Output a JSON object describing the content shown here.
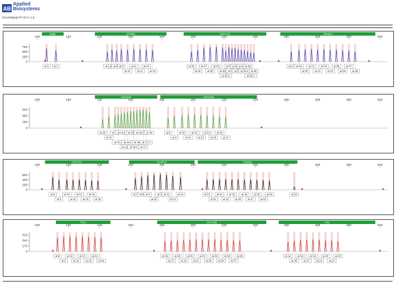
{
  "header": {
    "brand_line1": "Applied",
    "brand_line2": "Biosystems",
    "software": "GeneMapper® ID-X 1.5"
  },
  "colors": {
    "blue": "#3a44c2",
    "green": "#3cae3c",
    "black": "#222222",
    "red": "#d23a3a",
    "bin_bar": "#1f9e3a",
    "bin_stripe": "#f4c8c8",
    "marker_red": "#d22020"
  },
  "chart_data": [
    {
      "type": "line",
      "panel": "blue",
      "x_ticks": [
        100,
        120,
        140,
        160,
        180,
        200,
        220,
        240,
        260,
        280,
        300,
        320
      ],
      "y_ticks": [
        0,
        250,
        500,
        750
      ],
      "xlim": [
        95,
        325
      ],
      "ylim": [
        0,
        900
      ],
      "markers": [
        {
          "name": "AMEL",
          "range": [
            103,
            117
          ]
        },
        {
          "name": "D7S820",
          "range": [
            137,
            183
          ]
        },
        {
          "name": "D8S1179",
          "range": [
            194,
            247
          ]
        },
        {
          "name": "D5S818",
          "range": [
            256,
            317
          ]
        }
      ],
      "peaks": [
        {
          "label": "al X",
          "x": 106,
          "h": 680,
          "row": 0
        },
        {
          "label": "al Y",
          "x": 112,
          "h": 560,
          "row": 0
        },
        {
          "label": "al 8",
          "x": 145,
          "h": 500,
          "row": 0
        },
        {
          "label": "al 9",
          "x": 148,
          "h": 620,
          "row": 0
        },
        {
          "label": "al 8.1",
          "x": 151,
          "h": 560,
          "row": 0
        },
        {
          "label": "al 9",
          "x": 154,
          "h": 640,
          "row": 0
        },
        {
          "label": "al 10",
          "x": 158,
          "h": 610,
          "row": 1
        },
        {
          "label": "al 11",
          "x": 162,
          "h": 650,
          "row": 0
        },
        {
          "label": "al 12",
          "x": 166,
          "h": 640,
          "row": 1
        },
        {
          "label": "al 13",
          "x": 170,
          "h": 630,
          "row": 0
        },
        {
          "label": "al 14",
          "x": 174,
          "h": 600,
          "row": 1
        },
        {
          "label": "al 25",
          "x": 199,
          "h": 520,
          "row": 0
        },
        {
          "label": "al 26",
          "x": 203,
          "h": 600,
          "row": 1
        },
        {
          "label": "al 27",
          "x": 207,
          "h": 720,
          "row": 0
        },
        {
          "label": "al 28",
          "x": 211,
          "h": 740,
          "row": 1
        },
        {
          "label": "al 29",
          "x": 215,
          "h": 760,
          "row": 0
        },
        {
          "label": "al 30",
          "x": 219,
          "h": 720,
          "row": 1
        },
        {
          "label": "al 30.2",
          "x": 221,
          "h": 560,
          "row": 2
        },
        {
          "label": "al 31",
          "x": 223,
          "h": 740,
          "row": 0
        },
        {
          "label": "al 31.2",
          "x": 225,
          "h": 680,
          "row": 1
        },
        {
          "label": "al 32",
          "x": 227,
          "h": 700,
          "row": 0
        },
        {
          "label": "al 32.2",
          "x": 229,
          "h": 650,
          "row": 1
        },
        {
          "label": "al 33",
          "x": 231,
          "h": 600,
          "row": 0
        },
        {
          "label": "al 33.2",
          "x": 233,
          "h": 580,
          "row": 1
        },
        {
          "label": "al 34",
          "x": 235,
          "h": 540,
          "row": 0
        },
        {
          "label": "al 34.2",
          "x": 237,
          "h": 480,
          "row": 2
        },
        {
          "label": "al 35",
          "x": 239,
          "h": 460,
          "row": 1
        },
        {
          "label": "al 17",
          "x": 263,
          "h": 520,
          "row": 0
        },
        {
          "label": "al 19",
          "x": 268,
          "h": 600,
          "row": 0
        },
        {
          "label": "al 20",
          "x": 272,
          "h": 620,
          "row": 1
        },
        {
          "label": "al 21",
          "x": 276,
          "h": 640,
          "row": 0
        },
        {
          "label": "al 22",
          "x": 280,
          "h": 620,
          "row": 1
        },
        {
          "label": "al 23",
          "x": 284,
          "h": 640,
          "row": 0
        },
        {
          "label": "al 24",
          "x": 288,
          "h": 600,
          "row": 1
        },
        {
          "label": "al 25",
          "x": 292,
          "h": 620,
          "row": 0
        },
        {
          "label": "al 26",
          "x": 296,
          "h": 580,
          "row": 1
        },
        {
          "label": "al 27",
          "x": 300,
          "h": 560,
          "row": 0
        },
        {
          "label": "al 28",
          "x": 304,
          "h": 520,
          "row": 1
        }
      ],
      "red_markers": [
        105,
        129,
        243,
        255,
        313
      ]
    },
    {
      "type": "line",
      "panel": "green",
      "x_ticks": [
        100,
        120,
        140,
        160,
        180,
        200,
        220,
        240,
        260,
        280,
        300,
        320
      ],
      "y_ticks": [
        0,
        180,
        360,
        540
      ],
      "xlim": [
        95,
        325
      ],
      "ylim": [
        0,
        620
      ],
      "markers": [
        {
          "name": "D16S539",
          "range": [
            137,
            177
          ]
        },
        {
          "name": "D3S1358",
          "range": [
            179,
            241
          ]
        }
      ],
      "peaks": [
        {
          "label": "al 10",
          "x": 142,
          "h": 260,
          "row": 0
        },
        {
          "label": "al 11",
          "x": 146,
          "h": 340,
          "row": 1
        },
        {
          "label": "al 12",
          "x": 150,
          "h": 380,
          "row": 0
        },
        {
          "label": "al 12.2",
          "x": 152,
          "h": 420,
          "row": 2
        },
        {
          "label": "al 13.2",
          "x": 154,
          "h": 440,
          "row": 0
        },
        {
          "label": "al 14",
          "x": 156,
          "h": 460,
          "row": 3
        },
        {
          "label": "al 14.2",
          "x": 158,
          "h": 480,
          "row": 2
        },
        {
          "label": "al 15",
          "x": 160,
          "h": 500,
          "row": 0
        },
        {
          "label": "al 15.2",
          "x": 162,
          "h": 500,
          "row": 3
        },
        {
          "label": "al 16",
          "x": 164,
          "h": 520,
          "row": 2
        },
        {
          "label": "al 16.2",
          "x": 166,
          "h": 540,
          "row": 0
        },
        {
          "label": "al 17",
          "x": 168,
          "h": 540,
          "row": 3
        },
        {
          "label": "al 17.2",
          "x": 170,
          "h": 520,
          "row": 2
        },
        {
          "label": "al 18",
          "x": 172,
          "h": 470,
          "row": 0
        },
        {
          "label": "al 8",
          "x": 184,
          "h": 300,
          "row": 0
        },
        {
          "label": "al 9",
          "x": 188,
          "h": 360,
          "row": 1
        },
        {
          "label": "al 10",
          "x": 193,
          "h": 380,
          "row": 0
        },
        {
          "label": "al 11",
          "x": 197,
          "h": 390,
          "row": 1
        },
        {
          "label": "al 12",
          "x": 201,
          "h": 400,
          "row": 0
        },
        {
          "label": "al 13",
          "x": 205,
          "h": 390,
          "row": 1
        },
        {
          "label": "al 14",
          "x": 209,
          "h": 380,
          "row": 0
        },
        {
          "label": "al 15",
          "x": 213,
          "h": 370,
          "row": 1
        },
        {
          "label": "al 16",
          "x": 217,
          "h": 350,
          "row": 0
        },
        {
          "label": "al 17",
          "x": 221,
          "h": 330,
          "row": 1
        }
      ],
      "red_markers": [
        128,
        244
      ]
    },
    {
      "type": "line",
      "panel": "black",
      "x_ticks": [
        100,
        120,
        140,
        160,
        180,
        200,
        220,
        240,
        260,
        280,
        300,
        320
      ],
      "y_ticks": [
        0,
        200,
        400,
        600
      ],
      "xlim": [
        95,
        325
      ],
      "ylim": [
        0,
        720
      ],
      "markers": [
        {
          "name": "CSF1PO",
          "range": [
            105,
            146
          ]
        },
        {
          "name": "D13S317",
          "range": [
            159,
            201
          ]
        },
        {
          "name": "D18S51",
          "range": [
            203,
            267
          ]
        }
      ],
      "peaks": [
        {
          "label": "al 8",
          "x": 110,
          "h": 520,
          "row": 0
        },
        {
          "label": "al 9",
          "x": 114,
          "h": 400,
          "row": 1
        },
        {
          "label": "al 10",
          "x": 119,
          "h": 420,
          "row": 0
        },
        {
          "label": "al 11",
          "x": 123,
          "h": 400,
          "row": 1
        },
        {
          "label": "al 12",
          "x": 127,
          "h": 420,
          "row": 0
        },
        {
          "label": "al 13",
          "x": 131,
          "h": 400,
          "row": 1
        },
        {
          "label": "al 14",
          "x": 135,
          "h": 380,
          "row": 0
        },
        {
          "label": "al 15",
          "x": 139,
          "h": 380,
          "row": 1
        },
        {
          "label": "al 7",
          "x": 163,
          "h": 480,
          "row": 0
        },
        {
          "label": "al 8",
          "x": 167,
          "h": 540,
          "row": 0
        },
        {
          "label": "al 9",
          "x": 171,
          "h": 600,
          "row": 0
        },
        {
          "label": "al 10",
          "x": 175,
          "h": 620,
          "row": 1
        },
        {
          "label": "al 11",
          "x": 179,
          "h": 640,
          "row": 0
        },
        {
          "label": "al 12",
          "x": 183,
          "h": 600,
          "row": 0
        },
        {
          "label": "al 13",
          "x": 187,
          "h": 560,
          "row": 1
        },
        {
          "label": "al 14",
          "x": 192,
          "h": 520,
          "row": 0
        },
        {
          "label": "al 10",
          "x": 209,
          "h": 420,
          "row": 0
        },
        {
          "label": "al 11",
          "x": 213,
          "h": 430,
          "row": 1
        },
        {
          "label": "al 12",
          "x": 217,
          "h": 440,
          "row": 0
        },
        {
          "label": "al 13",
          "x": 221,
          "h": 440,
          "row": 1
        },
        {
          "label": "al 14",
          "x": 225,
          "h": 430,
          "row": 0
        },
        {
          "label": "al 15",
          "x": 229,
          "h": 430,
          "row": 1
        },
        {
          "label": "al 16",
          "x": 233,
          "h": 420,
          "row": 0
        },
        {
          "label": "al 17",
          "x": 237,
          "h": 420,
          "row": 1
        },
        {
          "label": "al 18",
          "x": 241,
          "h": 400,
          "row": 0
        },
        {
          "label": "al 19",
          "x": 245,
          "h": 400,
          "row": 1
        },
        {
          "label": "al 20",
          "x": 249,
          "h": 380,
          "row": 0
        },
        {
          "label": "al 24",
          "x": 265,
          "h": 120,
          "row": 0
        }
      ],
      "red_markers": [
        103,
        157,
        206,
        270,
        322
      ]
    },
    {
      "type": "line",
      "panel": "red",
      "x_ticks": [
        100,
        120,
        140,
        160,
        180,
        200,
        220,
        240,
        260,
        280,
        300,
        320
      ],
      "y_ticks": [
        0,
        170,
        340,
        510
      ],
      "xlim": [
        95,
        325
      ],
      "ylim": [
        0,
        600
      ],
      "markers": [
        {
          "name": "TH01",
          "range": [
            112,
            147
          ]
        },
        {
          "name": "D2S1338",
          "range": [
            177,
            247
          ]
        },
        {
          "name": "FGA",
          "range": [
            255,
            317
          ]
        }
      ],
      "peaks": [
        {
          "label": "al 8",
          "x": 113,
          "h": 440,
          "row": 0
        },
        {
          "label": "al 9",
          "x": 117,
          "h": 470,
          "row": 1
        },
        {
          "label": "al 10",
          "x": 121,
          "h": 480,
          "row": 0
        },
        {
          "label": "al 11",
          "x": 125,
          "h": 470,
          "row": 1
        },
        {
          "label": "al 12",
          "x": 129,
          "h": 470,
          "row": 0
        },
        {
          "label": "al 13",
          "x": 133,
          "h": 460,
          "row": 1
        },
        {
          "label": "al 14",
          "x": 137,
          "h": 450,
          "row": 0
        },
        {
          "label": "al 15",
          "x": 141,
          "h": 440,
          "row": 1
        },
        {
          "label": "al 16",
          "x": 182,
          "h": 320,
          "row": 0
        },
        {
          "label": "al 17",
          "x": 186,
          "h": 340,
          "row": 1
        },
        {
          "label": "al 18",
          "x": 190,
          "h": 350,
          "row": 0
        },
        {
          "label": "al 19",
          "x": 194,
          "h": 360,
          "row": 1
        },
        {
          "label": "al 20",
          "x": 198,
          "h": 370,
          "row": 0
        },
        {
          "label": "al 21",
          "x": 202,
          "h": 380,
          "row": 1
        },
        {
          "label": "al 22",
          "x": 206,
          "h": 380,
          "row": 0
        },
        {
          "label": "al 23",
          "x": 210,
          "h": 380,
          "row": 1
        },
        {
          "label": "al 24",
          "x": 214,
          "h": 380,
          "row": 0
        },
        {
          "label": "al 25",
          "x": 218,
          "h": 370,
          "row": 1
        },
        {
          "label": "al 26",
          "x": 222,
          "h": 360,
          "row": 0
        },
        {
          "label": "al 27",
          "x": 226,
          "h": 350,
          "row": 1
        },
        {
          "label": "al 28",
          "x": 230,
          "h": 340,
          "row": 0
        },
        {
          "label": "al 14",
          "x": 261,
          "h": 300,
          "row": 0
        },
        {
          "label": "al 15",
          "x": 265,
          "h": 340,
          "row": 1
        },
        {
          "label": "al 16",
          "x": 269,
          "h": 360,
          "row": 0
        },
        {
          "label": "al 17",
          "x": 273,
          "h": 370,
          "row": 1
        },
        {
          "label": "al 18",
          "x": 277,
          "h": 380,
          "row": 0
        },
        {
          "label": "al 19",
          "x": 281,
          "h": 370,
          "row": 1
        },
        {
          "label": "al 20",
          "x": 285,
          "h": 360,
          "row": 0
        },
        {
          "label": "al 21",
          "x": 289,
          "h": 350,
          "row": 1
        },
        {
          "label": "al 22",
          "x": 293,
          "h": 330,
          "row": 0
        }
      ],
      "red_markers": [
        110,
        175,
        250,
        320
      ]
    }
  ]
}
